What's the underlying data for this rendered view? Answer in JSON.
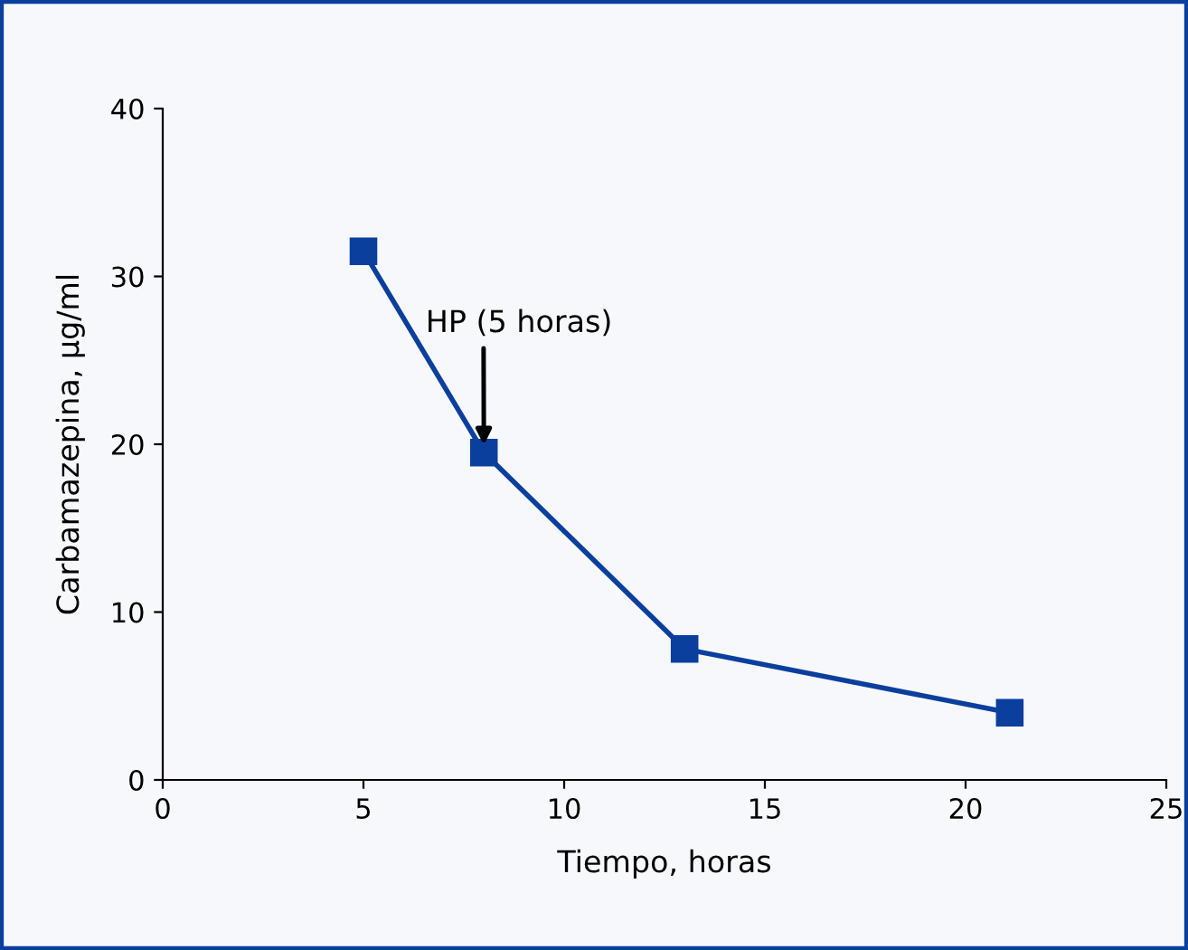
{
  "chart_data": {
    "type": "line",
    "xlabel": "Tiempo, horas",
    "ylabel": "Carbamazepina, µg/ml",
    "x": [
      5,
      8,
      13,
      21.1
    ],
    "series": [
      {
        "color": "#0b3f9e",
        "values": [
          31.5,
          19.5,
          7.8,
          4.0
        ]
      }
    ],
    "xlim": [
      0,
      25
    ],
    "xticks": [
      0,
      5,
      10,
      15,
      20,
      25
    ],
    "ylim": [
      0,
      40
    ],
    "yticks": [
      0,
      10,
      20,
      30,
      40
    ],
    "marker": "square",
    "line_style": "solid",
    "grid": false,
    "legend": false,
    "annotations": [
      {
        "text": "HP (5 horas)",
        "x": 8,
        "y": 19.5
      }
    ]
  }
}
